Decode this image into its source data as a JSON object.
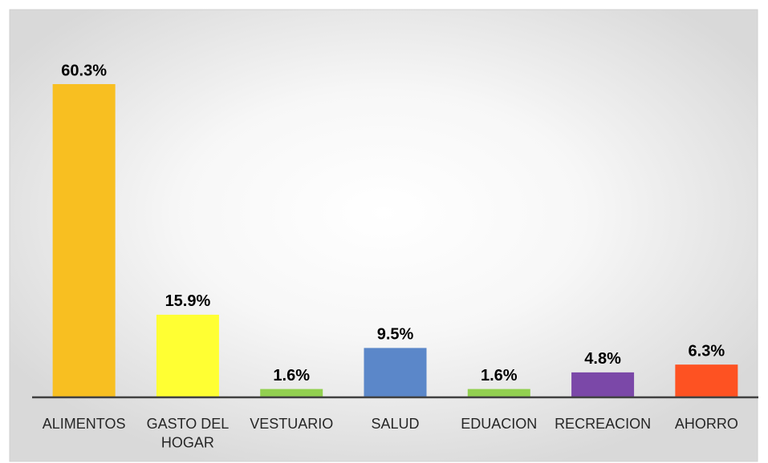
{
  "chart_data": {
    "type": "bar",
    "categories": [
      "ALIMENTOS",
      "GASTO DEL HOGAR",
      "VESTUARIO",
      "SALUD",
      "EDUACION",
      "RECREACION",
      "AHORRO"
    ],
    "values": [
      60.3,
      15.9,
      1.6,
      9.5,
      1.6,
      4.8,
      6.3
    ],
    "value_labels": [
      "60.3%",
      "15.9%",
      "1.6%",
      "9.5%",
      "1.6%",
      "4.8%",
      "6.3%"
    ],
    "colors": [
      "#f8bf21",
      "#ffff33",
      "#92d050",
      "#5b87c9",
      "#92d050",
      "#7b48a8",
      "#fe5222"
    ]
  }
}
